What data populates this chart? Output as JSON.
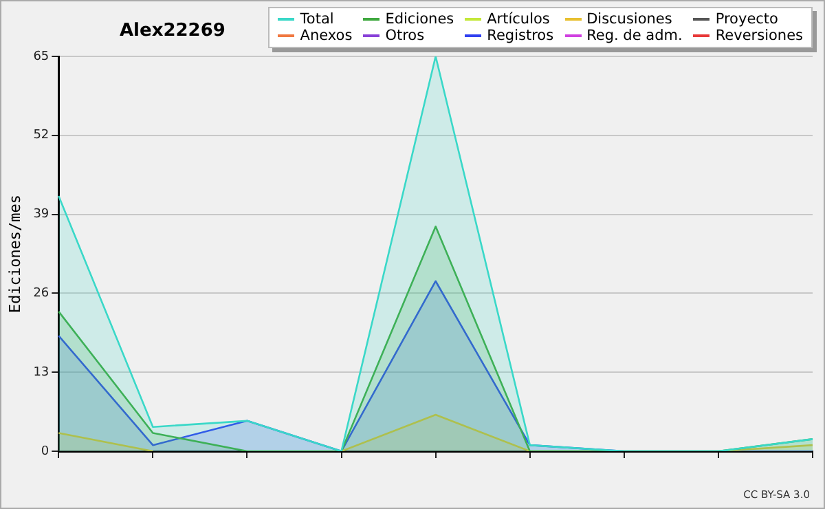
{
  "chart_data": {
    "type": "area",
    "title": "Alex22269",
    "ylabel": "Ediciones/mes",
    "annotations": [
      "CC BY-SA 3.0"
    ],
    "categories": [
      null,
      null,
      null,
      null,
      null,
      null,
      null,
      null,
      null
    ],
    "ylim": [
      0,
      65
    ],
    "yticks": [
      0,
      13,
      26,
      39,
      52,
      65
    ],
    "grid": "y",
    "legend": "top right",
    "marker": "none",
    "line_style": "solid",
    "series": [
      {
        "name": "Total",
        "color": "#3ad8c8",
        "values": [
          42,
          4,
          5,
          0,
          65,
          1,
          0,
          0,
          2
        ]
      },
      {
        "name": "Ediciones",
        "color": "#3fa83f",
        "values": [
          23,
          3,
          0,
          0,
          37,
          0,
          0,
          0,
          2
        ]
      },
      {
        "name": "Artículos",
        "color": "#c4e83a",
        "values": [
          null,
          null,
          null,
          null,
          null,
          null,
          null,
          null,
          null
        ]
      },
      {
        "name": "Discusiones",
        "color": "#e8c030",
        "values": [
          3,
          0,
          null,
          0,
          6,
          0,
          0,
          0,
          1
        ]
      },
      {
        "name": "Proyecto",
        "color": "#555555",
        "values": [
          null,
          null,
          null,
          null,
          null,
          null,
          null,
          null,
          null
        ]
      },
      {
        "name": "Anexos",
        "color": "#f07840",
        "values": [
          null,
          null,
          null,
          null,
          null,
          null,
          null,
          null,
          null
        ]
      },
      {
        "name": "Otros",
        "color": "#8840d8",
        "values": [
          null,
          null,
          null,
          null,
          null,
          null,
          null,
          null,
          null
        ]
      },
      {
        "name": "Registros",
        "color": "#3040f0",
        "values": [
          19,
          1,
          5,
          0,
          28,
          1,
          0,
          0,
          0
        ]
      },
      {
        "name": "Reg. de adm.",
        "color": "#d040e0",
        "values": [
          null,
          null,
          null,
          null,
          null,
          null,
          null,
          null,
          null
        ]
      },
      {
        "name": "Reversiones",
        "color": "#e83838",
        "values": [
          null,
          null,
          null,
          null,
          null,
          null,
          null,
          null,
          null
        ]
      }
    ]
  }
}
